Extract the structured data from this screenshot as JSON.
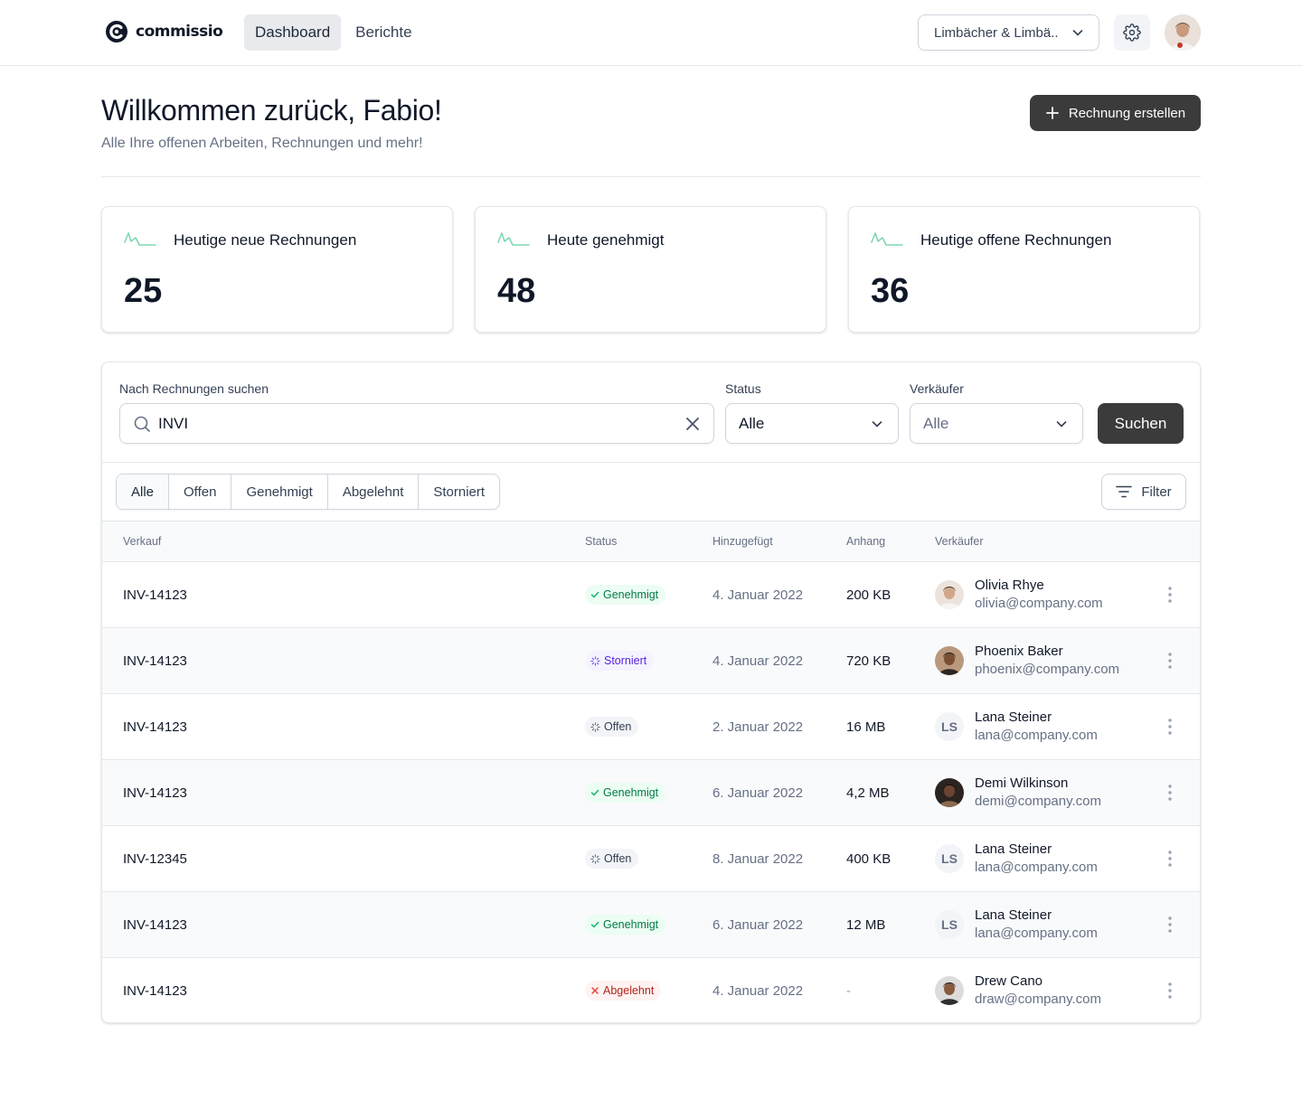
{
  "app": {
    "brand": "commissio",
    "nav": [
      {
        "label": "Dashboard",
        "active": true
      },
      {
        "label": "Berichte",
        "active": false
      }
    ],
    "company_select": "Limbächer & Limbä..",
    "icons": {
      "settings": "gear-icon",
      "avatar": "user-avatar"
    }
  },
  "page": {
    "title": "Willkommen zurück, Fabio!",
    "subtitle": "Alle Ihre offenen Arbeiten, Rechnungen und mehr!",
    "create_button": "Rechnung erstellen"
  },
  "stats": [
    {
      "label": "Heutige neue Rechnungen",
      "value": "25"
    },
    {
      "label": "Heute genehmigt",
      "value": "48"
    },
    {
      "label": "Heutige offene Rechnungen",
      "value": "36"
    }
  ],
  "search": {
    "label": "Nach Rechnungen suchen",
    "value": "INVI",
    "status_label": "Status",
    "status_value": "Alle",
    "seller_label": "Verkäufer",
    "seller_value": "Alle",
    "search_button": "Suchen"
  },
  "tabs": [
    "Alle",
    "Offen",
    "Genehmigt",
    "Abgelehnt",
    "Storniert"
  ],
  "filter_button": "Filter",
  "table": {
    "headers": {
      "sale": "Verkauf",
      "status": "Status",
      "added": "Hinzugefügt",
      "attachment": "Anhang",
      "seller": "Verkäufer"
    },
    "rows": [
      {
        "invoice": "INV-14123",
        "status": "Genehmigt",
        "status_type": "approved",
        "date": "4. Januar 2022",
        "size": "200 KB",
        "seller": "Olivia Rhye",
        "email": "olivia@company.com",
        "avatar": "photo",
        "initials": ""
      },
      {
        "invoice": "INV-14123",
        "status": "Storniert",
        "status_type": "cancelled",
        "date": "4. Januar 2022",
        "size": "720 KB",
        "seller": "Phoenix Baker",
        "email": "phoenix@company.com",
        "avatar": "photo",
        "initials": ""
      },
      {
        "invoice": "INV-14123",
        "status": "Offen",
        "status_type": "open",
        "date": "2. Januar 2022",
        "size": "16 MB",
        "seller": "Lana Steiner",
        "email": "lana@company.com",
        "avatar": "initials",
        "initials": "LS"
      },
      {
        "invoice": "INV-14123",
        "status": "Genehmigt",
        "status_type": "approved",
        "date": "6. Januar 2022",
        "size": "4,2 MB",
        "seller": "Demi Wilkinson",
        "email": "demi@company.com",
        "avatar": "photo",
        "initials": ""
      },
      {
        "invoice": "INV-12345",
        "status": "Offen",
        "status_type": "open",
        "date": "8. Januar 2022",
        "size": "400 KB",
        "seller": "Lana Steiner",
        "email": "lana@company.com",
        "avatar": "initials",
        "initials": "LS"
      },
      {
        "invoice": "INV-14123",
        "status": "Genehmigt",
        "status_type": "approved",
        "date": "6. Januar 2022",
        "size": "12 MB",
        "seller": "Lana Steiner",
        "email": "lana@company.com",
        "avatar": "initials",
        "initials": "LS"
      },
      {
        "invoice": "INV-14123",
        "status": "Abgelehnt",
        "status_type": "rejected",
        "date": "4. Januar 2022",
        "size": "-",
        "seller": "Drew Cano",
        "email": "draw@company.com",
        "avatar": "photo",
        "initials": ""
      }
    ]
  }
}
